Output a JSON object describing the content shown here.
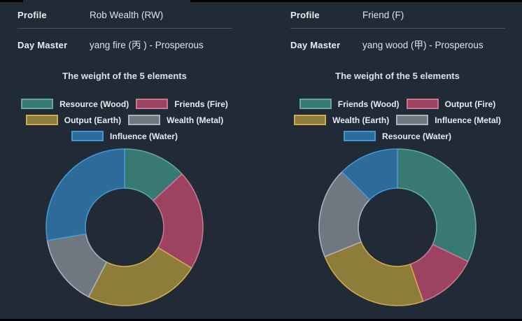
{
  "theme": {
    "background": "#212b37",
    "edge_color": "#000000",
    "label_color": "#e9edf1",
    "value_color": "#dde2e8",
    "divider_color": "#55606c"
  },
  "panels": [
    {
      "profile_label": "Profile",
      "profile_value": "Rob Wealth (RW)",
      "day_master_label": "Day Master",
      "day_master_value": "yang fire (丙 ) - Prosperous",
      "chart_title": "The weight of the 5 elements"
    },
    {
      "profile_label": "Profile",
      "profile_value": "Friend (F)",
      "day_master_label": "Day Master",
      "day_master_value": "yang wood (甲) - Prosperous",
      "chart_title": "The weight of the 5 elements"
    }
  ],
  "chart_data": [
    {
      "type": "pie",
      "variant": "doughnut",
      "title": "The weight of the 5 elements",
      "categories": [
        "Resource (Wood)",
        "Friends (Fire)",
        "Output (Earth)",
        "Wealth (Metal)",
        "Influence (Water)"
      ],
      "values": [
        13.1,
        20.6,
        23.9,
        14.7,
        27.7
      ],
      "unit": "percent",
      "colors": [
        "#387974",
        "#9e4261",
        "#8e7c3a",
        "#6f7780",
        "#2d6b9a"
      ],
      "border_colors": [
        "#62a79e",
        "#c4798f",
        "#cfa94e",
        "#aab1b9",
        "#4496d2"
      ],
      "legend_position": "top",
      "start_angle_deg": 0,
      "clockwise": true,
      "inner_radius_ratio": 0.5
    },
    {
      "type": "pie",
      "variant": "doughnut",
      "title": "The weight of the 5 elements",
      "categories": [
        "Friends (Wood)",
        "Output (Fire)",
        "Wealth (Earth)",
        "Influence (Metal)",
        "Resource (Water)"
      ],
      "values": [
        32.2,
        12.5,
        24.2,
        18.6,
        12.5
      ],
      "unit": "percent",
      "colors": [
        "#387974",
        "#9e4261",
        "#8e7c3a",
        "#6f7780",
        "#2d6b9a"
      ],
      "border_colors": [
        "#62a79e",
        "#c4798f",
        "#cfa94e",
        "#aab1b9",
        "#4496d2"
      ],
      "legend_position": "top",
      "start_angle_deg": 0,
      "clockwise": true,
      "inner_radius_ratio": 0.5
    }
  ]
}
